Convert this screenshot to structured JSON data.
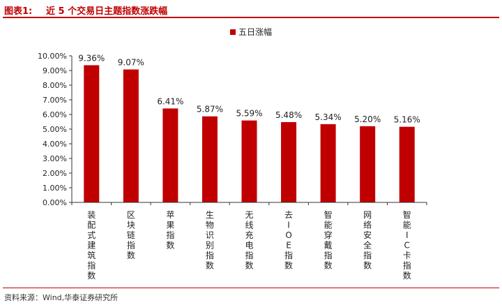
{
  "figure": {
    "label": "图表1:",
    "title": "近 5 个交易日主题指数涨跌幅",
    "source": "资料来源：Wind,华泰证券研究所"
  },
  "colors": {
    "accent": "#c00000",
    "bar": "#c00000"
  },
  "chart_data": {
    "type": "bar",
    "categories": [
      "装配式建筑指数",
      "区块链指数",
      "苹果指数",
      "生物识别指数",
      "无线充电指数",
      "去IOE指数",
      "智能穿戴指数",
      "网络安全指数",
      "智能IC卡指数"
    ],
    "series": [
      {
        "name": "五日涨幅",
        "values": [
          9.36,
          9.07,
          6.41,
          5.87,
          5.59,
          5.48,
          5.34,
          5.2,
          5.16
        ]
      }
    ],
    "value_labels": [
      "9.36%",
      "9.07%",
      "6.41%",
      "5.87%",
      "5.59%",
      "5.48%",
      "5.34%",
      "5.20%",
      "5.16%"
    ],
    "y_ticks": [
      "0.00%",
      "1.00%",
      "2.00%",
      "3.00%",
      "4.00%",
      "5.00%",
      "6.00%",
      "7.00%",
      "8.00%",
      "9.00%",
      "10.00%"
    ],
    "ylim": [
      0,
      10
    ],
    "legend_position": "top-center",
    "grid": false,
    "title": "",
    "xlabel": "",
    "ylabel": ""
  }
}
